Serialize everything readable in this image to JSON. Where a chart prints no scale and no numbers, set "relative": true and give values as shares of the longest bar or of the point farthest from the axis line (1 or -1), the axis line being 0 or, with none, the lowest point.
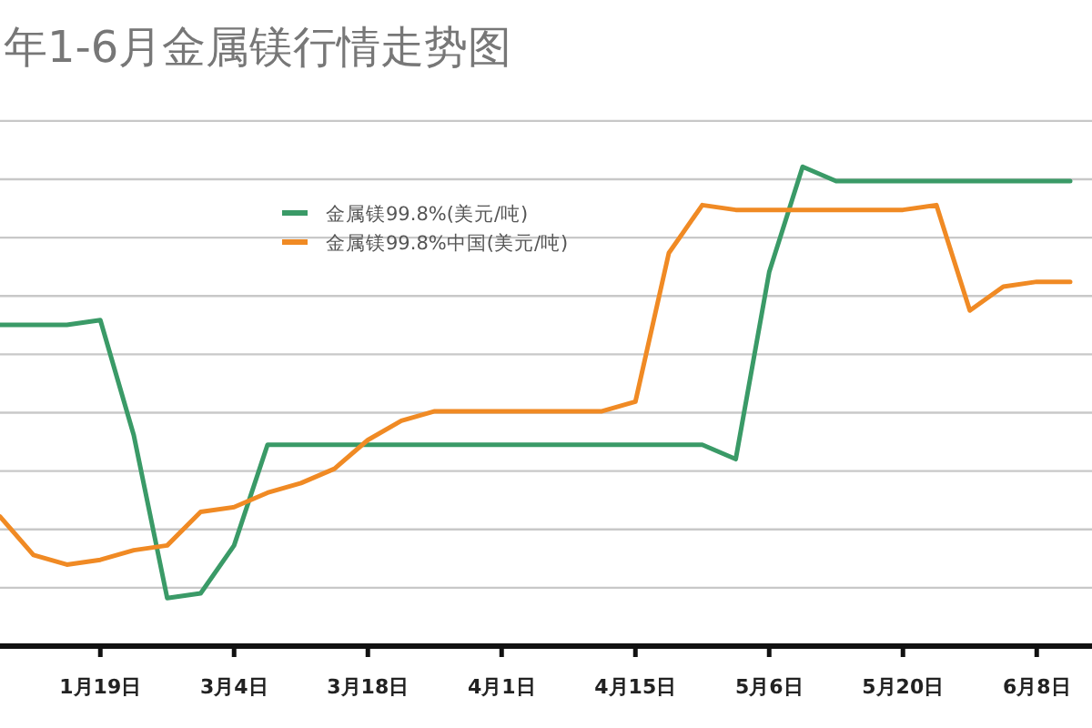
{
  "chart_data": {
    "type": "line",
    "title": "年1-6月金属镁行情走势图",
    "relative": true,
    "grid": "y",
    "legend": "top",
    "marker": "none",
    "line_style": "solid",
    "categories": [
      null,
      null,
      null,
      "1月19日",
      null,
      null,
      null,
      "3月4日",
      null,
      null,
      null,
      "3月18日",
      null,
      null,
      null,
      "4月1日",
      null,
      null,
      null,
      "4月15日",
      null,
      null,
      null,
      "5月6日",
      null,
      null,
      null,
      "5月20日",
      null,
      null,
      null,
      "6月8日",
      null
    ],
    "series": [
      {
        "name": "金属镁99.8%(美元/吨)",
        "color": "#3a9a67",
        "values": [
          0.67,
          0.67,
          0.67,
          0.68,
          0.44,
          0.1,
          0.11,
          0.21,
          0.42,
          0.42,
          0.42,
          0.42,
          0.42,
          0.42,
          0.42,
          0.42,
          0.42,
          0.42,
          0.42,
          0.42,
          0.42,
          0.42,
          0.39,
          0.78,
          1.0,
          0.97,
          0.97,
          0.97,
          0.97,
          0.97,
          0.97,
          0.97,
          0.97
        ]
      },
      {
        "name": "金属镁99.8%中国(美元/吨)",
        "color": "#f08a24",
        "values": [
          0.27,
          0.19,
          0.17,
          0.18,
          0.2,
          0.21,
          0.28,
          0.29,
          0.32,
          0.34,
          0.37,
          0.43,
          0.47,
          0.49,
          0.49,
          0.49,
          0.49,
          0.49,
          0.49,
          0.51,
          0.82,
          0.92,
          0.91,
          0.91,
          0.91,
          0.91,
          0.91,
          0.91,
          0.92,
          0.7,
          0.75,
          0.76,
          0.76
        ]
      }
    ]
  }
}
